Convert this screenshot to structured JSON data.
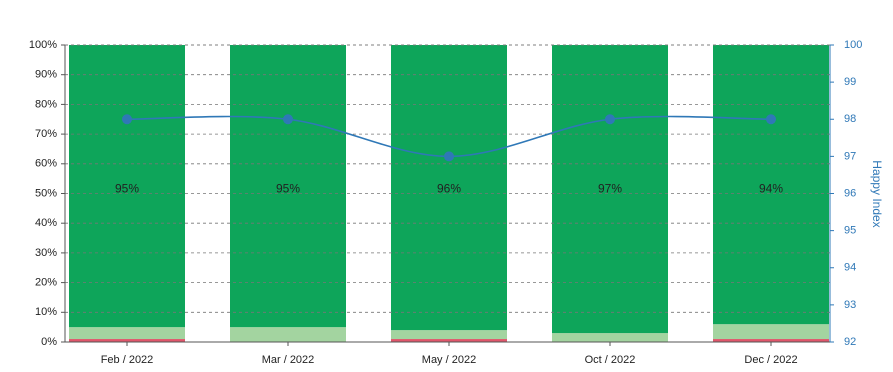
{
  "chart_data": {
    "type": "bar",
    "stacked": true,
    "categories": [
      "Feb / 2022",
      "Mar / 2022",
      "May / 2022",
      "Oct / 2022",
      "Dec / 2022"
    ],
    "series": [
      {
        "color": "#e0566b",
        "values": [
          1,
          0,
          1,
          0,
          1
        ]
      },
      {
        "color": "#a3d4a0",
        "values": [
          4,
          5,
          3,
          3,
          5
        ]
      },
      {
        "color": "#0ea55a",
        "values": [
          95,
          95,
          96,
          97,
          94
        ],
        "value_labels": [
          "95%",
          "95%",
          "96%",
          "97%",
          "94%"
        ]
      },
      {
        "type": "line",
        "axis": "y2",
        "color": "#2f78b7",
        "values": [
          98,
          98,
          97,
          98,
          98
        ]
      }
    ],
    "ylim": [
      0,
      100
    ],
    "yticks": [
      {
        "value": 0,
        "label": "0%"
      },
      {
        "value": 10,
        "label": "10%"
      },
      {
        "value": 20,
        "label": "20%"
      },
      {
        "value": 30,
        "label": "30%"
      },
      {
        "value": 40,
        "label": "40%"
      },
      {
        "value": 50,
        "label": "50%"
      },
      {
        "value": 60,
        "label": "60%"
      },
      {
        "value": 70,
        "label": "70%"
      },
      {
        "value": 80,
        "label": "80%"
      },
      {
        "value": 90,
        "label": "90%"
      },
      {
        "value": 100,
        "label": "100%"
      }
    ],
    "y2lim": [
      92,
      100
    ],
    "y2ticks": [
      92,
      93,
      94,
      95,
      96,
      97,
      98,
      99,
      100
    ],
    "y2label": "Happy Index",
    "grid": true
  }
}
